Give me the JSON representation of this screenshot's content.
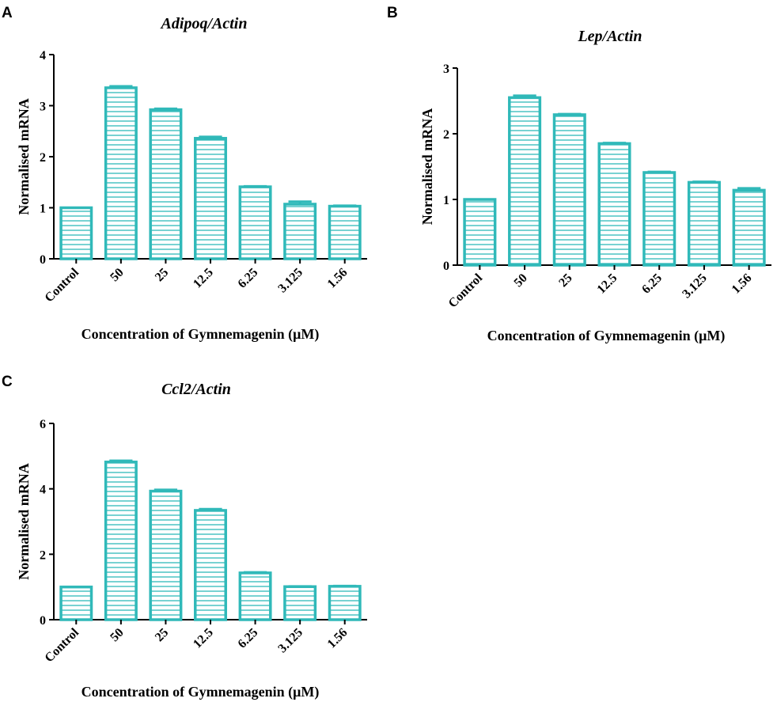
{
  "charts": [
    {
      "panel": "A",
      "chart_data": {
        "type": "bar",
        "title": "Adipoq/Actin",
        "ylabel": "Normalised mRNA",
        "xlabel": "Concentration of Gymnemagenin (μM)",
        "categories": [
          "Control",
          "50",
          "25",
          "12.5",
          "6.25",
          "3.125",
          "1.56"
        ],
        "values": [
          1.0,
          3.35,
          2.92,
          2.36,
          1.41,
          1.07,
          1.03
        ],
        "errors": [
          0.0,
          0.03,
          0.02,
          0.03,
          0.01,
          0.05,
          0.01
        ],
        "ylim": [
          0,
          4
        ],
        "yticks": [
          "0",
          "1",
          "2",
          "3",
          "4"
        ]
      }
    },
    {
      "panel": "B",
      "chart_data": {
        "type": "bar",
        "title": "Lep/Actin",
        "ylabel": "Normalised mRNA",
        "xlabel": "Concentration of Gymnemagenin (μM)",
        "categories": [
          "Control",
          "50",
          "25",
          "12.5",
          "6.25",
          "3.125",
          "1.56"
        ],
        "values": [
          1.0,
          2.55,
          2.29,
          1.85,
          1.41,
          1.26,
          1.14
        ],
        "errors": [
          0.0,
          0.03,
          0.01,
          0.01,
          0.01,
          0.01,
          0.03
        ],
        "ylim": [
          0,
          3
        ],
        "yticks": [
          "0",
          "1",
          "2",
          "3"
        ]
      }
    },
    {
      "panel": "C",
      "chart_data": {
        "type": "bar",
        "title": "Ccl2/Actin",
        "ylabel": "Normalised mRNA",
        "xlabel": "Concentration of Gymnemagenin (μM)",
        "categories": [
          "Control",
          "50",
          "25",
          "12.5",
          "6.25",
          "3.125",
          "1.56"
        ],
        "values": [
          1.0,
          4.82,
          3.93,
          3.34,
          1.43,
          1.01,
          1.02
        ],
        "errors": [
          0.0,
          0.04,
          0.04,
          0.04,
          0.02,
          0.01,
          0.01
        ],
        "ylim": [
          0,
          6
        ],
        "yticks": [
          "0",
          "2",
          "4",
          "6"
        ]
      }
    }
  ],
  "colors": {
    "bar_stroke": "#30b9b9",
    "hatch": "#30b9b9",
    "axis": "#000000"
  }
}
